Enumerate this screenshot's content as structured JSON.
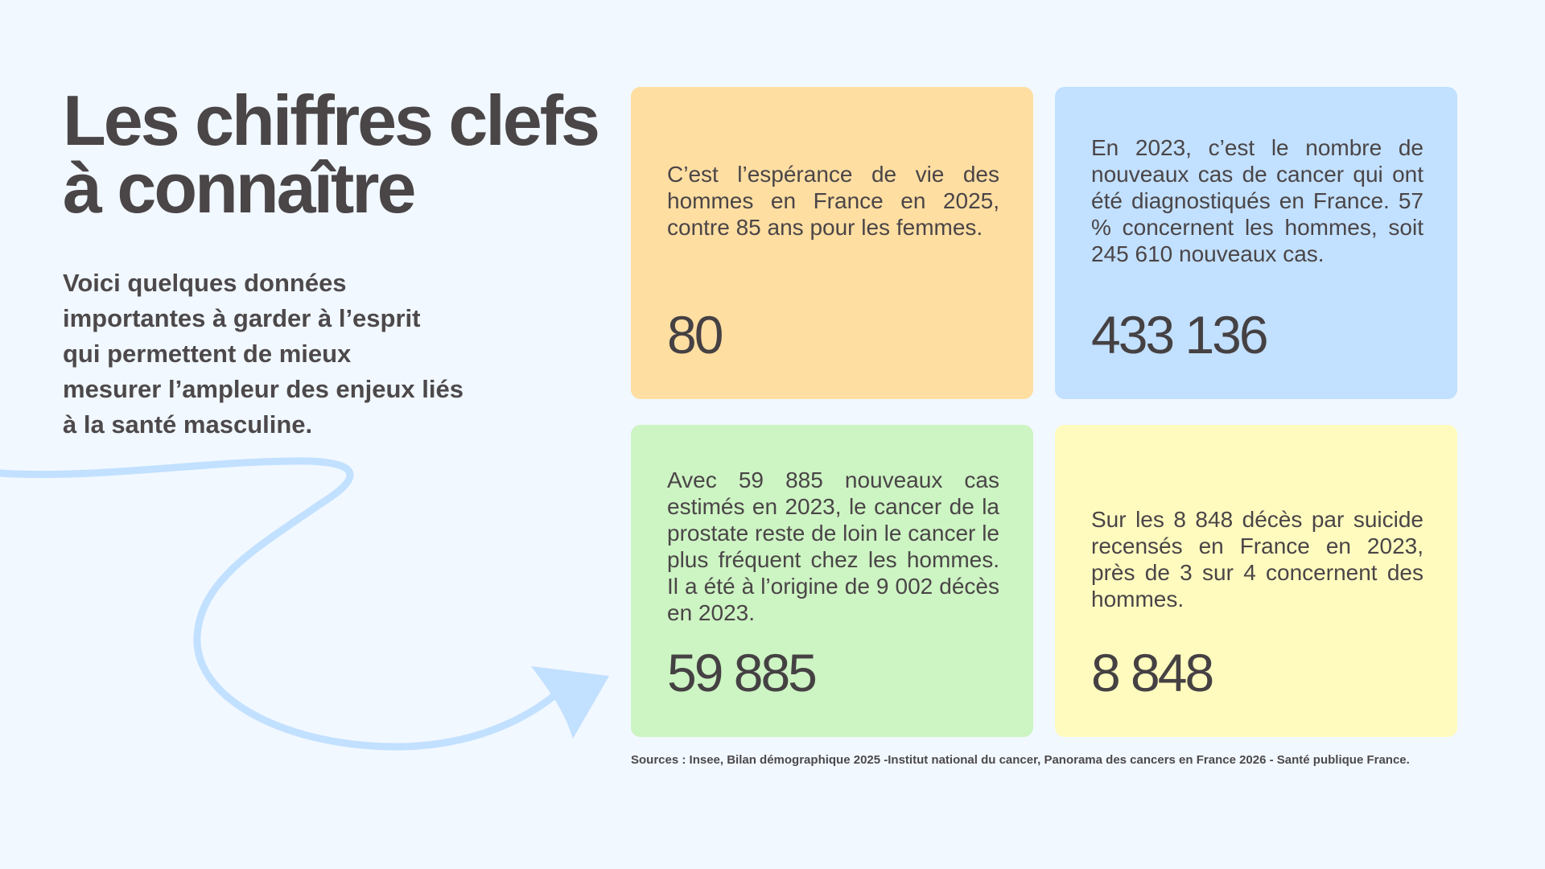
{
  "page": {
    "title": "Les chiffres clefs\nà connaître",
    "intro": "Voici quelques données\nimportantes à garder à l’esprit\nqui permettent de mieux\nmesurer l’ampleur des enjeux liés\nà la santé masculine."
  },
  "cards": [
    {
      "text": "C’est l’espérance de vie des hommes en France en 2025, contre 85 ans pour les femmes.",
      "value": "80",
      "color": "#ffdea2"
    },
    {
      "text": "En 2023, c’est le nombre de nouveaux cas de cancer qui ont été diagnostiqués en France. 57 % concernent les hommes, soit 245 610 nouveaux cas.",
      "value": "433 136",
      "color": "#c2e0ff"
    },
    {
      "text": "Avec 59 885 nouveaux cas estimés en 2023, le cancer de la prostate reste de loin le cancer le plus fréquent chez les hommes. Il a été à l’origine de 9 002 décès en 2023.",
      "value": "59 885",
      "color": "#cdf4c3"
    },
    {
      "text": "Sur les 8 848 décès par suicide recensés en France en 2023, près de 3 sur 4 concernent des hommes.",
      "value": "8 848",
      "color": "#fffbbf"
    }
  ],
  "sources": "Sources : Insee, Bilan démographique 2025 -Institut national du cancer, Panorama des cancers en France 2026 - Santé publique France.",
  "decor": {
    "arrow_icon": "curved-arrow-icon",
    "arrow_color": "#c2e0ff"
  }
}
